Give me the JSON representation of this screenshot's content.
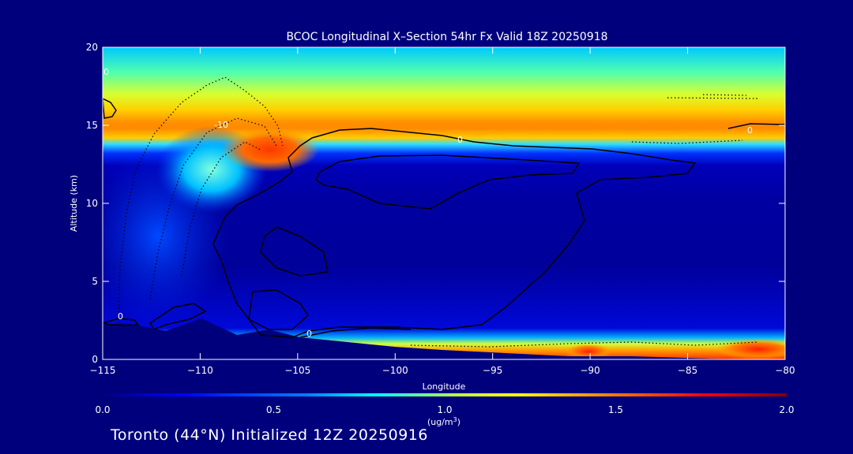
{
  "chart_data": {
    "type": "heatmap",
    "title": "BCOC Longitudinal X–Section 54hr  Fx Valid 18Z 20250918",
    "xlabel": "Longitude",
    "ylabel": "Altitude (km)",
    "xlim": [
      -115,
      -80
    ],
    "ylim": [
      0,
      20
    ],
    "x_ticks": [
      -115,
      -110,
      -105,
      -100,
      -95,
      -90,
      -85,
      -80
    ],
    "x_tick_labels": [
      "−115",
      "−110",
      "−105",
      "−100",
      "−95",
      "−90",
      "−85",
      "−80"
    ],
    "y_ticks": [
      0,
      5,
      10,
      15,
      20
    ],
    "y_tick_labels": [
      "0",
      "5",
      "10",
      "15",
      "20"
    ],
    "colorbar": {
      "min": 0.0,
      "max": 2.0,
      "ticks": [
        "0.0",
        "0.5",
        "1.0",
        "1.5",
        "2.0"
      ],
      "units_line1": "(ug/m",
      "units_sup": "3",
      "units_line2": ")",
      "colors": [
        "#00007f",
        "#0000ff",
        "#0080ff",
        "#00ffff",
        "#80ff80",
        "#ffff00",
        "#ff8000",
        "#ff0000",
        "#7f0000"
      ]
    },
    "contour_labels": [
      "-10",
      "0",
      "0",
      "0",
      "0",
      "0"
    ],
    "fields": {
      "upper_layer": {
        "altitude_km": [
          13,
          20
        ],
        "peak_value": 1.45,
        "peak_altitude_km": 14.5
      },
      "plume_core": {
        "longitude": [
          -108.5,
          -104.5
        ],
        "altitude_km": [
          12,
          15
        ],
        "value": 1.6
      },
      "surface_layer": {
        "longitude": [
          -104,
          -80
        ],
        "altitude_km": [
          0,
          1.5
        ],
        "peak_value": 1.8
      }
    }
  },
  "footer": "Toronto (44°N) Initialized 12Z 20250916"
}
